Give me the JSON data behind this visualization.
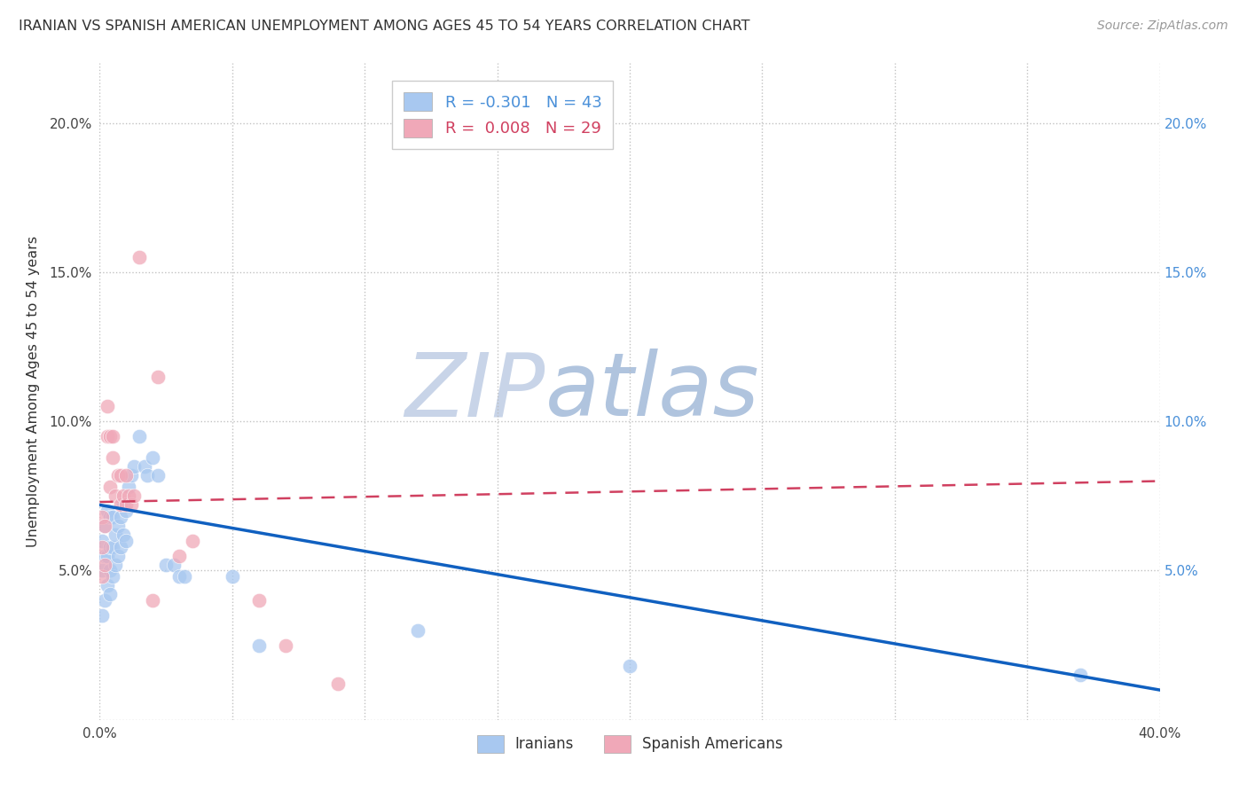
{
  "title": "IRANIAN VS SPANISH AMERICAN UNEMPLOYMENT AMONG AGES 45 TO 54 YEARS CORRELATION CHART",
  "source": "Source: ZipAtlas.com",
  "ylabel": "Unemployment Among Ages 45 to 54 years",
  "xlim": [
    0,
    0.4
  ],
  "ylim": [
    0,
    0.22
  ],
  "xticks": [
    0.0,
    0.05,
    0.1,
    0.15,
    0.2,
    0.25,
    0.3,
    0.35,
    0.4
  ],
  "yticks": [
    0.0,
    0.05,
    0.1,
    0.15,
    0.2
  ],
  "color_iranian": "#A8C8F0",
  "color_spanish": "#F0A8B8",
  "color_iranian_line": "#1060C0",
  "color_spanish_line": "#D04060",
  "background_color": "#ffffff",
  "watermark_zip": "ZIP",
  "watermark_atlas": "atlas",
  "watermark_color_zip": "#C8D8EC",
  "watermark_color_atlas": "#B8CCE4",
  "iranian_x": [
    0.001,
    0.001,
    0.001,
    0.002,
    0.002,
    0.002,
    0.003,
    0.003,
    0.003,
    0.004,
    0.004,
    0.004,
    0.004,
    0.005,
    0.005,
    0.005,
    0.006,
    0.006,
    0.007,
    0.007,
    0.008,
    0.008,
    0.009,
    0.009,
    0.01,
    0.01,
    0.011,
    0.012,
    0.013,
    0.015,
    0.017,
    0.018,
    0.02,
    0.022,
    0.025,
    0.028,
    0.03,
    0.032,
    0.05,
    0.06,
    0.12,
    0.2,
    0.37
  ],
  "iranian_y": [
    0.035,
    0.05,
    0.06,
    0.04,
    0.055,
    0.065,
    0.045,
    0.055,
    0.07,
    0.042,
    0.05,
    0.058,
    0.068,
    0.048,
    0.058,
    0.068,
    0.052,
    0.062,
    0.055,
    0.065,
    0.058,
    0.068,
    0.062,
    0.072,
    0.06,
    0.07,
    0.078,
    0.082,
    0.085,
    0.095,
    0.085,
    0.082,
    0.088,
    0.082,
    0.052,
    0.052,
    0.048,
    0.048,
    0.048,
    0.025,
    0.03,
    0.018,
    0.015
  ],
  "spanish_x": [
    0.001,
    0.001,
    0.001,
    0.002,
    0.002,
    0.003,
    0.003,
    0.004,
    0.004,
    0.005,
    0.005,
    0.006,
    0.007,
    0.008,
    0.008,
    0.009,
    0.01,
    0.01,
    0.011,
    0.012,
    0.013,
    0.015,
    0.02,
    0.022,
    0.03,
    0.035,
    0.06,
    0.07,
    0.09
  ],
  "spanish_y": [
    0.048,
    0.058,
    0.068,
    0.052,
    0.065,
    0.095,
    0.105,
    0.078,
    0.095,
    0.088,
    0.095,
    0.075,
    0.082,
    0.072,
    0.082,
    0.075,
    0.072,
    0.082,
    0.075,
    0.072,
    0.075,
    0.155,
    0.04,
    0.115,
    0.055,
    0.06,
    0.04,
    0.025,
    0.012
  ],
  "iran_trend_x0": 0.0,
  "iran_trend_y0": 0.072,
  "iran_trend_x1": 0.4,
  "iran_trend_y1": 0.01,
  "span_trend_x0": 0.0,
  "span_trend_y0": 0.073,
  "span_trend_x1": 0.4,
  "span_trend_y1": 0.08
}
